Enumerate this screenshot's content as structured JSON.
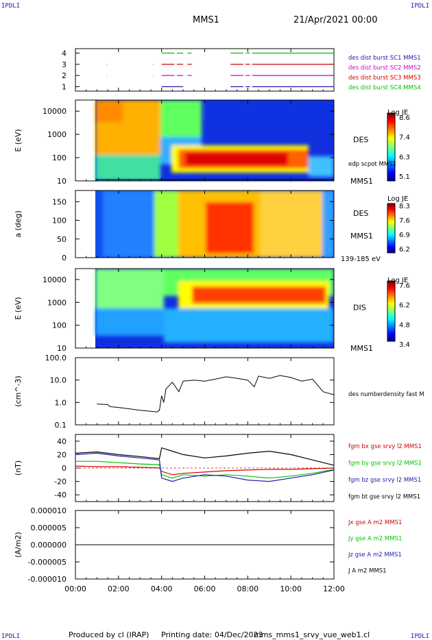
{
  "header": {
    "corner_left_top": "IPDLI",
    "corner_right_top": "IPDLI",
    "corner_left_bottom": "IPDLI",
    "corner_right_bottom": "IPDLI",
    "spacecraft": "MMS1",
    "datetime": "21/Apr/2021 00:00"
  },
  "footer": {
    "produced_by": "Produced by cl (IRAP)",
    "printing_date": "Printing date: 04/Dec/2023",
    "filename": "mms_mms1_srvy_vue_web1.cl"
  },
  "time_axis": {
    "ticks": [
      "00:00",
      "02:00",
      "04:00",
      "06:00",
      "08:00",
      "10:00",
      "12:00"
    ],
    "range_hours": [
      0,
      12
    ]
  },
  "colors": {
    "sc1": "#1a1ab0",
    "sc2": "#d000d0",
    "sc3": "#d00000",
    "sc4": "#00c000",
    "bx": "#d00000",
    "by": "#00c000",
    "bz": "#1a1ab0",
    "bt": "#000000"
  },
  "chart_data": [
    {
      "type": "line",
      "id": "burst",
      "yticks": [
        "1",
        "2",
        "3",
        "4"
      ],
      "ylim": [
        0.6,
        4.4
      ],
      "series": [
        {
          "name": "des dist burst SC1 MMS1",
          "y": 1,
          "segments": [
            [
              4.0,
              5.0
            ],
            [
              7.2,
              7.8
            ],
            [
              7.9,
              8.1
            ],
            [
              8.2,
              12.0
            ]
          ]
        },
        {
          "name": "des dist burst SC2 MMS2",
          "y": 2,
          "segments": [
            [
              1.45,
              1.47
            ],
            [
              3.6,
              3.62
            ],
            [
              4.0,
              4.6
            ],
            [
              4.7,
              5.0
            ],
            [
              5.2,
              5.4
            ],
            [
              7.2,
              7.8
            ],
            [
              7.9,
              8.1
            ],
            [
              8.2,
              12.0
            ]
          ]
        },
        {
          "name": "des dist burst SC3 MMS3",
          "y": 3,
          "segments": [
            [
              1.45,
              1.47
            ],
            [
              3.6,
              3.62
            ],
            [
              4.0,
              4.6
            ],
            [
              4.7,
              5.0
            ],
            [
              5.2,
              5.4
            ],
            [
              7.2,
              7.8
            ],
            [
              7.9,
              8.1
            ],
            [
              8.2,
              12.0
            ]
          ]
        },
        {
          "name": "des dist burst SC4 MMS4",
          "y": 4,
          "segments": [
            [
              4.0,
              4.6
            ],
            [
              4.7,
              5.0
            ],
            [
              5.2,
              5.4
            ],
            [
              7.2,
              7.8
            ],
            [
              7.9,
              8.1
            ],
            [
              8.2,
              12.0
            ]
          ]
        }
      ]
    },
    {
      "type": "heatmap",
      "id": "des_energy",
      "ylabel": "E (eV)",
      "yscale": "log",
      "yticks": [
        "10",
        "100",
        "1000",
        "10000"
      ],
      "ylim": [
        10,
        30000
      ],
      "label": "DES",
      "sublabel": "MMS1",
      "overlay_label": "edp scpot MMS1",
      "colorbar": {
        "title": "Log JE",
        "ticks": [
          "8.6",
          "7.4",
          "6.3",
          "5.1"
        ],
        "range": [
          5.1,
          8.6
        ]
      }
    },
    {
      "type": "heatmap",
      "id": "des_pitch",
      "ylabel": "a (deg)",
      "yticks": [
        "0",
        "50",
        "100",
        "150"
      ],
      "ylim": [
        0,
        180
      ],
      "label": "DES",
      "sublabel": "MMS1",
      "energy_range": "139-185 eV",
      "colorbar": {
        "title": "Log JE",
        "ticks": [
          "8.3",
          "7.6",
          "6.9",
          "6.2"
        ],
        "range": [
          6.2,
          8.3
        ]
      }
    },
    {
      "type": "heatmap",
      "id": "dis_energy",
      "ylabel": "E (eV)",
      "yscale": "log",
      "yticks": [
        "10",
        "100",
        "1000",
        "10000"
      ],
      "ylim": [
        10,
        30000
      ],
      "label": "DIS",
      "sublabel": "MMS1",
      "colorbar": {
        "title": "Log JE",
        "ticks": [
          "7.6",
          "6.2",
          "4.8",
          "3.4"
        ],
        "range": [
          3.4,
          7.6
        ]
      }
    },
    {
      "type": "line",
      "id": "density",
      "ylabel": "(cm^-3)",
      "yscale": "log",
      "yticks": [
        "0.1",
        "1.0",
        "10.0",
        "100.0"
      ],
      "ylim": [
        0.1,
        100
      ],
      "series": [
        {
          "name": "des numberdensity fast M",
          "x": [
            1.0,
            1.5,
            1.6,
            2.0,
            2.5,
            3.0,
            3.5,
            3.8,
            3.9,
            4.0,
            4.1,
            4.2,
            4.5,
            4.8,
            5.0,
            5.5,
            6.0,
            6.5,
            7.0,
            7.5,
            8.0,
            8.3,
            8.5,
            9.0,
            9.5,
            10.0,
            10.5,
            11.0,
            11.5,
            11.8,
            12.0
          ],
          "y": [
            0.85,
            0.8,
            0.65,
            0.6,
            0.52,
            0.45,
            0.4,
            0.38,
            0.45,
            2.0,
            1.0,
            4.0,
            8.0,
            3.0,
            9.0,
            10.0,
            9.0,
            11.0,
            14.0,
            12.0,
            10.0,
            5.0,
            15.0,
            12.0,
            16.0,
            13.0,
            9.0,
            11.0,
            3.0,
            2.5,
            2.2
          ]
        }
      ]
    },
    {
      "type": "line",
      "id": "fgm",
      "ylabel": "(nT)",
      "yticks": [
        "-40",
        "-20",
        "0",
        "20",
        "40"
      ],
      "ylim": [
        -50,
        50
      ],
      "series": [
        {
          "name": "fgm bx gse srvy l2 MMS1",
          "x": [
            0,
            1,
            2,
            3,
            3.9,
            4.0,
            4.5,
            5,
            6,
            7,
            8,
            9,
            10,
            11,
            12
          ],
          "y": [
            3,
            2,
            2,
            1,
            0,
            -5,
            -10,
            -8,
            -6,
            -4,
            -3,
            -2,
            -2,
            -1,
            0
          ]
        },
        {
          "name": "fgm by gse srvy l2 MMS1",
          "x": [
            0,
            1,
            2,
            3,
            3.9,
            4.0,
            4.5,
            5,
            6,
            7,
            8,
            9,
            10,
            11,
            12
          ],
          "y": [
            10,
            10,
            8,
            6,
            5,
            -10,
            -15,
            -10,
            -12,
            -10,
            -12,
            -15,
            -12,
            -8,
            -2
          ]
        },
        {
          "name": "fgm bz gse srvy l2 MMS1",
          "x": [
            0,
            1,
            2,
            3,
            3.9,
            4.0,
            4.5,
            5,
            6,
            7,
            8,
            9,
            10,
            11,
            12
          ],
          "y": [
            20,
            22,
            18,
            15,
            12,
            -15,
            -20,
            -15,
            -10,
            -12,
            -18,
            -20,
            -15,
            -10,
            -3
          ]
        },
        {
          "name": "fgm bt gse srvy l2 MMS1",
          "x": [
            0,
            1,
            2,
            3,
            3.9,
            4.0,
            4.5,
            5,
            6,
            7,
            8,
            9,
            10,
            11,
            12
          ],
          "y": [
            22,
            24,
            20,
            17,
            14,
            30,
            25,
            20,
            15,
            18,
            22,
            25,
            20,
            12,
            4
          ]
        }
      ]
    },
    {
      "type": "line",
      "id": "current",
      "ylabel": "(A/m2)",
      "yticks": [
        "-0.000010",
        "-0.000005",
        "0.000000",
        "0.000005",
        "0.000010"
      ],
      "ylim": [
        -1e-05,
        1e-05
      ],
      "series": [
        {
          "name": "Jx gse A m2 MMS1",
          "x": [
            0,
            12
          ],
          "y": [
            0,
            0
          ]
        },
        {
          "name": "Jy gse A m2 MMS1",
          "x": [
            0,
            12
          ],
          "y": [
            0,
            0
          ]
        },
        {
          "name": "Jz gse A m2 MMS1",
          "x": [
            0,
            12
          ],
          "y": [
            0,
            0
          ]
        },
        {
          "name": "J A m2 MMS1",
          "x": [
            0,
            12
          ],
          "y": [
            0,
            0
          ]
        }
      ]
    }
  ]
}
